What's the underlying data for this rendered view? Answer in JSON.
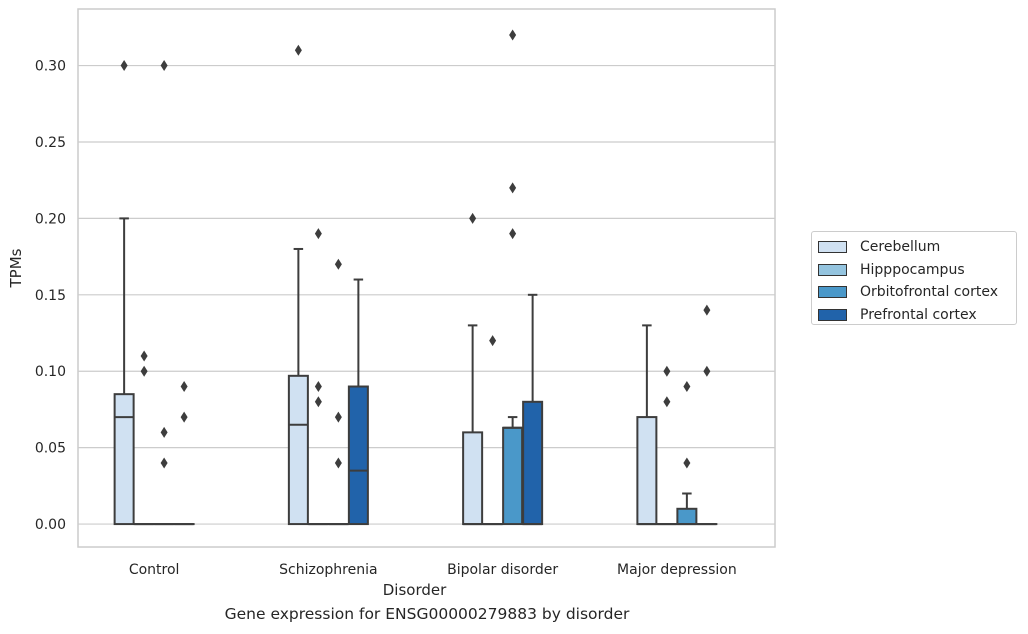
{
  "caption": "Gene expression for ENSG00000279883 by disorder",
  "chart_data": {
    "type": "box",
    "xlabel": "Disorder",
    "ylabel": "TPMs",
    "ylim": [
      -0.015,
      0.337
    ],
    "yticks": [
      "0.00",
      "0.05",
      "0.10",
      "0.15",
      "0.20",
      "0.25",
      "0.30"
    ],
    "categories": [
      "Control",
      "Schizophrenia",
      "Bipolar disorder",
      "Major depression"
    ],
    "grid": "horizontal",
    "legend_position": "right",
    "series": [
      {
        "name": "Cerebellum",
        "color": "#d0e1f2",
        "boxes": [
          {
            "whislo": 0.0,
            "q1": 0.0,
            "med": 0.07,
            "q3": 0.085,
            "whishi": 0.2,
            "fliers": [
              0.3
            ]
          },
          {
            "whislo": 0.0,
            "q1": 0.0,
            "med": 0.065,
            "q3": 0.097,
            "whishi": 0.18,
            "fliers": [
              0.31
            ]
          },
          {
            "whislo": 0.0,
            "q1": 0.0,
            "med": 0.0,
            "q3": 0.06,
            "whishi": 0.13,
            "fliers": [
              0.2
            ]
          },
          {
            "whislo": 0.0,
            "q1": 0.0,
            "med": 0.0,
            "q3": 0.07,
            "whishi": 0.13,
            "fliers": []
          }
        ]
      },
      {
        "name": "Hipppocampus",
        "color": "#94c4df",
        "boxes": [
          {
            "whislo": 0.0,
            "q1": 0.0,
            "med": 0.0,
            "q3": 0.0,
            "whishi": 0.0,
            "fliers": [
              0.1,
              0.11
            ]
          },
          {
            "whislo": 0.0,
            "q1": 0.0,
            "med": 0.0,
            "q3": 0.0,
            "whishi": 0.0,
            "fliers": [
              0.08,
              0.09,
              0.19
            ]
          },
          {
            "whislo": 0.0,
            "q1": 0.0,
            "med": 0.0,
            "q3": 0.0,
            "whishi": 0.0,
            "fliers": [
              0.12
            ]
          },
          {
            "whislo": 0.0,
            "q1": 0.0,
            "med": 0.0,
            "q3": 0.0,
            "whishi": 0.0,
            "fliers": [
              0.08,
              0.1
            ]
          }
        ]
      },
      {
        "name": "Orbitofrontal cortex",
        "color": "#4a98c9",
        "boxes": [
          {
            "whislo": 0.0,
            "q1": 0.0,
            "med": 0.0,
            "q3": 0.0,
            "whishi": 0.0,
            "fliers": [
              0.04,
              0.06,
              0.3
            ]
          },
          {
            "whislo": 0.0,
            "q1": 0.0,
            "med": 0.0,
            "q3": 0.0,
            "whishi": 0.0,
            "fliers": [
              0.04,
              0.07,
              0.17
            ]
          },
          {
            "whislo": 0.0,
            "q1": 0.0,
            "med": 0.063,
            "q3": 0.063,
            "whishi": 0.07,
            "fliers": [
              0.19,
              0.22,
              0.32
            ]
          },
          {
            "whislo": 0.0,
            "q1": 0.0,
            "med": 0.0,
            "q3": 0.01,
            "whishi": 0.02,
            "fliers": [
              0.04,
              0.09
            ]
          }
        ]
      },
      {
        "name": "Prefrontal cortex",
        "color": "#2163aa",
        "boxes": [
          {
            "whislo": 0.0,
            "q1": 0.0,
            "med": 0.0,
            "q3": 0.0,
            "whishi": 0.0,
            "fliers": [
              0.07,
              0.09
            ]
          },
          {
            "whislo": 0.0,
            "q1": 0.0,
            "med": 0.035,
            "q3": 0.09,
            "whishi": 0.16,
            "fliers": []
          },
          {
            "whislo": 0.0,
            "q1": 0.0,
            "med": 0.0,
            "q3": 0.08,
            "whishi": 0.15,
            "fliers": []
          },
          {
            "whislo": 0.0,
            "q1": 0.0,
            "med": 0.0,
            "q3": 0.0,
            "whishi": 0.0,
            "fliers": [
              0.1,
              0.14
            ]
          }
        ]
      }
    ]
  }
}
